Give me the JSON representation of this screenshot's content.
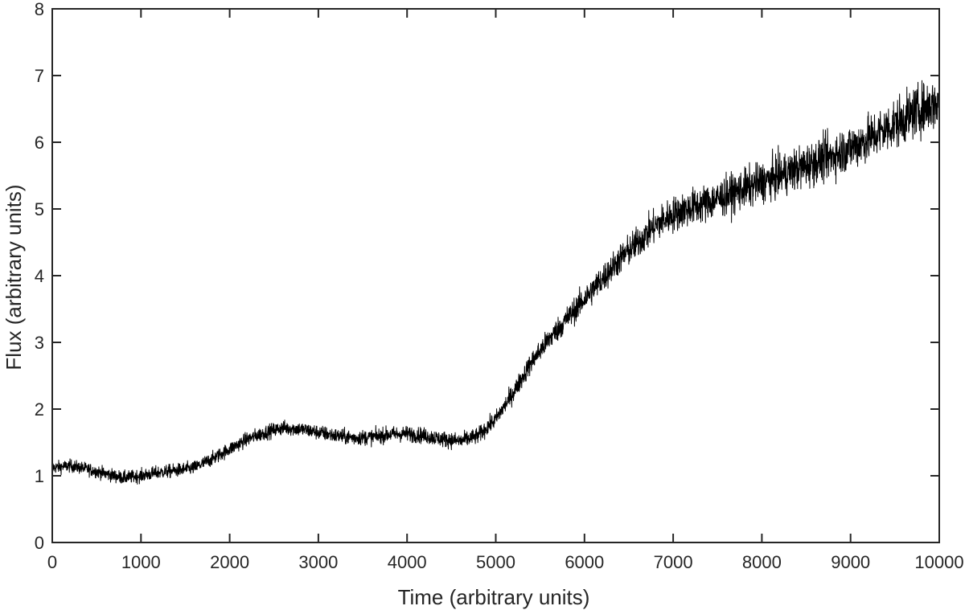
{
  "chart_data": {
    "type": "line",
    "title": "",
    "xlabel": "Time  (arbitrary units)",
    "ylabel": "Flux  (arbitrary units)",
    "xlim": [
      0,
      10000
    ],
    "ylim": [
      0,
      8
    ],
    "xticks": [
      0,
      1000,
      2000,
      3000,
      4000,
      5000,
      6000,
      7000,
      8000,
      9000,
      10000
    ],
    "yticks": [
      0,
      1,
      2,
      3,
      4,
      5,
      6,
      7,
      8
    ],
    "grid": false,
    "legend": "none",
    "line_color": "#000000",
    "noise_description": "dense noisy series; noise amplitude grows with time",
    "series": [
      {
        "trend": {
          "x": [
            0,
            200,
            400,
            600,
            800,
            1000,
            1200,
            1400,
            1600,
            1800,
            2000,
            2200,
            2400,
            2600,
            2800,
            3000,
            3200,
            3400,
            3600,
            3800,
            4000,
            4200,
            4400,
            4600,
            4800,
            5000,
            5200,
            5400,
            5600,
            5800,
            6000,
            6200,
            6400,
            6600,
            6800,
            7000,
            7200,
            7400,
            7600,
            7800,
            8000,
            8200,
            8400,
            8600,
            8800,
            9000,
            9200,
            9400,
            9600,
            9800,
            10000
          ],
          "y": [
            1.12,
            1.15,
            1.1,
            1.03,
            0.97,
            1.0,
            1.05,
            1.08,
            1.12,
            1.25,
            1.4,
            1.55,
            1.65,
            1.72,
            1.7,
            1.65,
            1.6,
            1.57,
            1.58,
            1.62,
            1.63,
            1.6,
            1.55,
            1.52,
            1.6,
            1.85,
            2.25,
            2.7,
            3.05,
            3.35,
            3.65,
            3.95,
            4.25,
            4.5,
            4.75,
            4.92,
            5.02,
            5.1,
            5.2,
            5.3,
            5.4,
            5.5,
            5.6,
            5.7,
            5.8,
            5.92,
            6.05,
            6.2,
            6.35,
            6.5,
            6.6
          ]
        },
        "noise_amplitude": {
          "x": [
            0,
            5000,
            6000,
            7000,
            8000,
            9000,
            10000
          ],
          "y": [
            0.09,
            0.12,
            0.2,
            0.26,
            0.3,
            0.34,
            0.38
          ]
        }
      }
    ]
  }
}
